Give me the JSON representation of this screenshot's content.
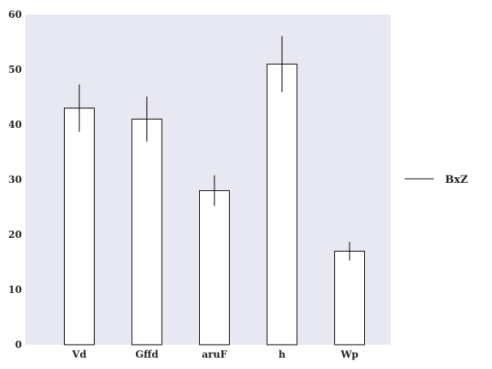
{
  "chart_data": {
    "type": "bar",
    "categories": [
      "Vd",
      "Gffd",
      "aruF",
      "h",
      "Wp"
    ],
    "series": [
      {
        "name": "BxZ",
        "values": [
          43,
          41,
          28,
          51,
          17
        ],
        "error": [
          4.3,
          4.1,
          2.8,
          5.1,
          1.7
        ]
      }
    ],
    "ylim": [
      0,
      60
    ],
    "yticks": [
      0,
      10,
      20,
      30,
      40,
      50,
      60
    ],
    "grid": false,
    "legend_position": "right",
    "colors": {
      "plot_background": "#e8e8f2",
      "bar_fill": "#ffffff",
      "bar_stroke": "#000000",
      "error_bar": "#000000",
      "legend_line": "#000000"
    }
  }
}
